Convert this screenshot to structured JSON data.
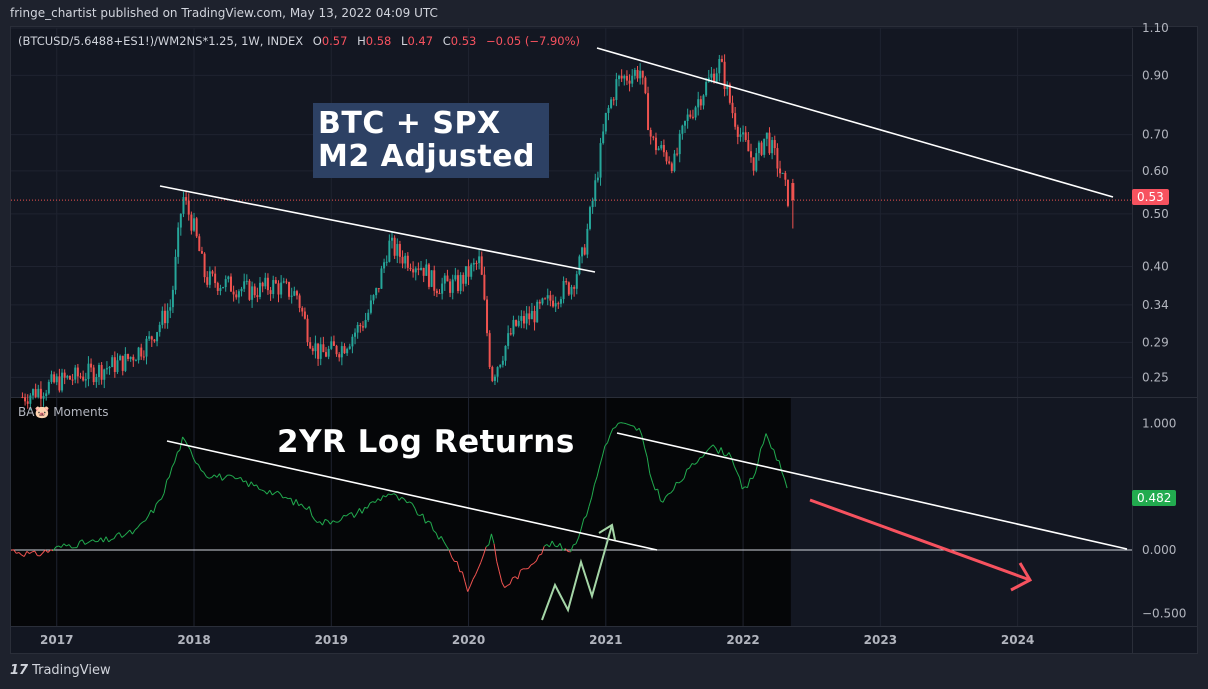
{
  "header": {
    "published": "fringe_chartist published on TradingView.com, May 13, 2022 04:09 UTC"
  },
  "symbol": {
    "name": "(BTCUSD/5.6488+ES1!)/WM2NS*1.25, 1W, INDEX",
    "o_label": "O",
    "o_value": "0.57",
    "h_label": "H",
    "h_value": "0.58",
    "l_label": "L",
    "l_value": "0.47",
    "c_label": "C",
    "c_value": "0.53",
    "change": "−0.05 (−7.90%)"
  },
  "annotations": {
    "title_line1": "BTC + SPX",
    "title_line2": "M2 Adjusted",
    "returns_label": "2YR Log Returns"
  },
  "indicator": {
    "name": "BA🐷 Moments"
  },
  "price_axis": {
    "labels": [
      "1.10",
      "0.90",
      "0.70",
      "0.60",
      "0.50",
      "0.40",
      "0.34",
      "0.29",
      "0.25"
    ],
    "last_price": "0.53"
  },
  "osc_axis": {
    "labels": [
      "1.000",
      "0.000",
      "−0.500"
    ],
    "last_value": "0.482"
  },
  "time_axis": {
    "labels": [
      "2017",
      "2018",
      "2019",
      "2020",
      "2021",
      "2022",
      "2023",
      "2024"
    ]
  },
  "footer": {
    "brand": "TradingView",
    "logo_text": "17"
  },
  "colors": {
    "background": "#131722",
    "up": "#26a69a",
    "down": "#ef5350",
    "osc_positive": "#22ab4f",
    "osc_negative": "#ef5350",
    "trendline": "#ffffff",
    "arrow_green": "#a5d6a7",
    "arrow_red": "#f7525f",
    "title_box": "#2d4164"
  },
  "chart_data": [
    {
      "type": "candlestick",
      "scale": "log",
      "interval": "1W",
      "ylim": [
        0.23,
        1.1
      ],
      "x_range": [
        "2016-09",
        "2024-11"
      ],
      "y_ticks": [
        1.1,
        0.9,
        0.7,
        0.6,
        0.5,
        0.4,
        0.34,
        0.29,
        0.25
      ],
      "series_close_approx": [
        {
          "x": "2016-10",
          "y": 0.23
        },
        {
          "x": "2017-01",
          "y": 0.245
        },
        {
          "x": "2017-04",
          "y": 0.255
        },
        {
          "x": "2017-07",
          "y": 0.268
        },
        {
          "x": "2017-09",
          "y": 0.29
        },
        {
          "x": "2017-11",
          "y": 0.34
        },
        {
          "x": "2017-12",
          "y": 0.54
        },
        {
          "x": "2018-01",
          "y": 0.47
        },
        {
          "x": "2018-02",
          "y": 0.38
        },
        {
          "x": "2018-04",
          "y": 0.37
        },
        {
          "x": "2018-06",
          "y": 0.36
        },
        {
          "x": "2018-08",
          "y": 0.37
        },
        {
          "x": "2018-10",
          "y": 0.355
        },
        {
          "x": "2018-11",
          "y": 0.3
        },
        {
          "x": "2018-12",
          "y": 0.275
        },
        {
          "x": "2019-02",
          "y": 0.285
        },
        {
          "x": "2019-04",
          "y": 0.32
        },
        {
          "x": "2019-05",
          "y": 0.36
        },
        {
          "x": "2019-06",
          "y": 0.44
        },
        {
          "x": "2019-07",
          "y": 0.42
        },
        {
          "x": "2019-09",
          "y": 0.4
        },
        {
          "x": "2019-10",
          "y": 0.37
        },
        {
          "x": "2019-12",
          "y": 0.37
        },
        {
          "x": "2020-02",
          "y": 0.41
        },
        {
          "x": "2020-03",
          "y": 0.25
        },
        {
          "x": "2020-05",
          "y": 0.31
        },
        {
          "x": "2020-07",
          "y": 0.33
        },
        {
          "x": "2020-09",
          "y": 0.36
        },
        {
          "x": "2020-10",
          "y": 0.37
        },
        {
          "x": "2020-11",
          "y": 0.42
        },
        {
          "x": "2020-12",
          "y": 0.55
        },
        {
          "x": "2021-01",
          "y": 0.75
        },
        {
          "x": "2021-02",
          "y": 0.88
        },
        {
          "x": "2021-04",
          "y": 0.92
        },
        {
          "x": "2021-05",
          "y": 0.68
        },
        {
          "x": "2021-07",
          "y": 0.62
        },
        {
          "x": "2021-08",
          "y": 0.74
        },
        {
          "x": "2021-10",
          "y": 0.88
        },
        {
          "x": "2021-11",
          "y": 0.95
        },
        {
          "x": "2021-12",
          "y": 0.78
        },
        {
          "x": "2022-01",
          "y": 0.68
        },
        {
          "x": "2022-02",
          "y": 0.62
        },
        {
          "x": "2022-03",
          "y": 0.7
        },
        {
          "x": "2022-04",
          "y": 0.62
        },
        {
          "x": "2022-05",
          "y": 0.53
        }
      ],
      "last": {
        "open": 0.57,
        "high": 0.58,
        "low": 0.47,
        "close": 0.53
      }
    },
    {
      "type": "line",
      "title": "BA🐷 Moments",
      "ylim": [
        -0.6,
        1.2
      ],
      "y_ticks": [
        1.0,
        0.0,
        -0.5
      ],
      "series": [
        {
          "values": [
            {
              "x": "2016-09",
              "y": 0.0
            },
            {
              "x": "2016-11",
              "y": -0.04
            },
            {
              "x": "2017-02",
              "y": 0.04
            },
            {
              "x": "2017-05",
              "y": 0.07
            },
            {
              "x": "2017-08",
              "y": 0.15
            },
            {
              "x": "2017-10",
              "y": 0.38
            },
            {
              "x": "2017-12",
              "y": 0.87
            },
            {
              "x": "2018-02",
              "y": 0.6
            },
            {
              "x": "2018-05",
              "y": 0.55
            },
            {
              "x": "2018-08",
              "y": 0.45
            },
            {
              "x": "2018-11",
              "y": 0.33
            },
            {
              "x": "2018-12",
              "y": 0.21
            },
            {
              "x": "2019-03",
              "y": 0.28
            },
            {
              "x": "2019-06",
              "y": 0.45
            },
            {
              "x": "2019-08",
              "y": 0.35
            },
            {
              "x": "2019-10",
              "y": 0.16
            },
            {
              "x": "2019-12",
              "y": -0.1
            },
            {
              "x": "2020-01",
              "y": -0.32
            },
            {
              "x": "2020-02",
              "y": -0.1
            },
            {
              "x": "2020-03",
              "y": 0.12
            },
            {
              "x": "2020-04",
              "y": -0.3
            },
            {
              "x": "2020-06",
              "y": -0.15
            },
            {
              "x": "2020-08",
              "y": 0.05
            },
            {
              "x": "2020-10",
              "y": 0.0
            },
            {
              "x": "2020-11",
              "y": 0.2
            },
            {
              "x": "2020-12",
              "y": 0.5
            },
            {
              "x": "2021-01",
              "y": 0.85
            },
            {
              "x": "2021-02",
              "y": 1.0
            },
            {
              "x": "2021-04",
              "y": 0.95
            },
            {
              "x": "2021-05",
              "y": 0.55
            },
            {
              "x": "2021-06",
              "y": 0.38
            },
            {
              "x": "2021-08",
              "y": 0.6
            },
            {
              "x": "2021-10",
              "y": 0.82
            },
            {
              "x": "2021-12",
              "y": 0.75
            },
            {
              "x": "2022-01",
              "y": 0.45
            },
            {
              "x": "2022-02",
              "y": 0.6
            },
            {
              "x": "2022-03",
              "y": 0.92
            },
            {
              "x": "2022-04",
              "y": 0.72
            },
            {
              "x": "2022-05",
              "y": 0.482
            }
          ]
        }
      ]
    }
  ]
}
